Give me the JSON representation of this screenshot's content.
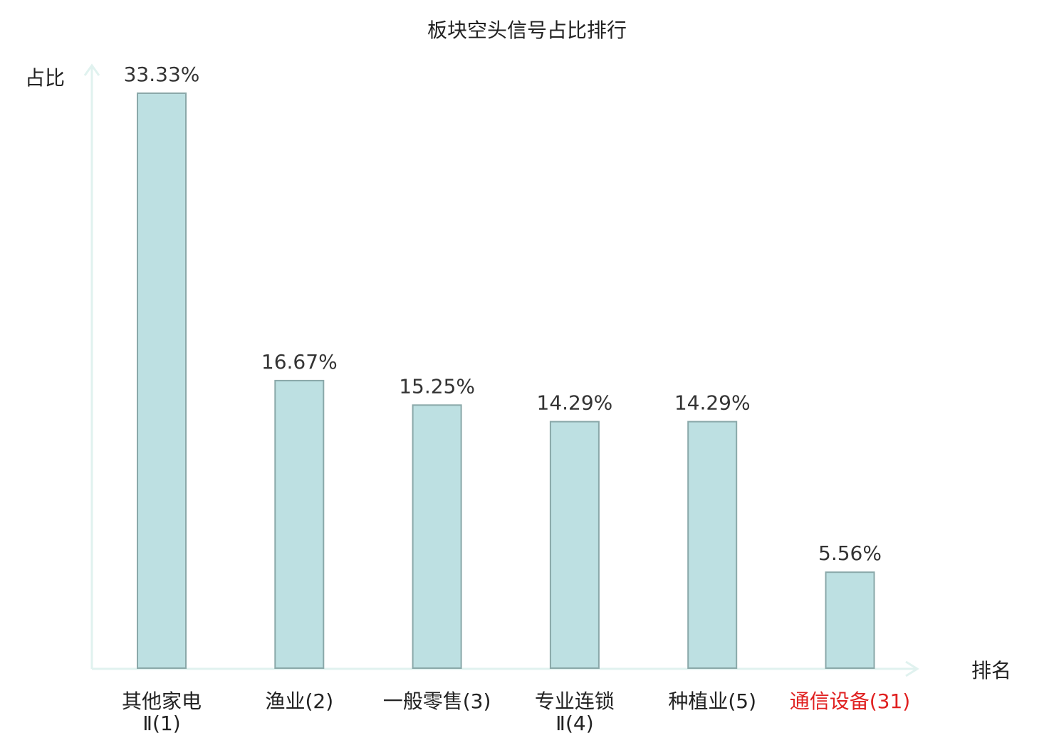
{
  "chart_data": {
    "type": "bar",
    "title": "板块空头信号占比排行",
    "ylabel": "占比",
    "xlabel": "排名",
    "ylim": [
      0,
      35
    ],
    "grid": false,
    "categories": [
      {
        "name": "其他家电",
        "rank": "Ⅱ(1)",
        "highlight": false
      },
      {
        "name": "渔业",
        "rank": "(2)",
        "highlight": false
      },
      {
        "name": "一般零售",
        "rank": "(3)",
        "highlight": false
      },
      {
        "name": "专业连锁",
        "rank": "Ⅱ(4)",
        "highlight": false
      },
      {
        "name": "种植业",
        "rank": "(5)",
        "highlight": false
      },
      {
        "name": "通信设备",
        "rank": "(31)",
        "highlight": true
      }
    ],
    "values": [
      33.33,
      16.67,
      15.25,
      14.29,
      14.29,
      5.56
    ],
    "value_labels": [
      "33.33%",
      "16.67%",
      "15.25%",
      "14.29%",
      "14.29%",
      "5.56%"
    ],
    "colors": {
      "bar_fill": "#bde0e2",
      "bar_stroke": "#8aa8a9",
      "axis": "#e0f2ef",
      "text": "#222222",
      "highlight_text": "#e02020"
    }
  }
}
